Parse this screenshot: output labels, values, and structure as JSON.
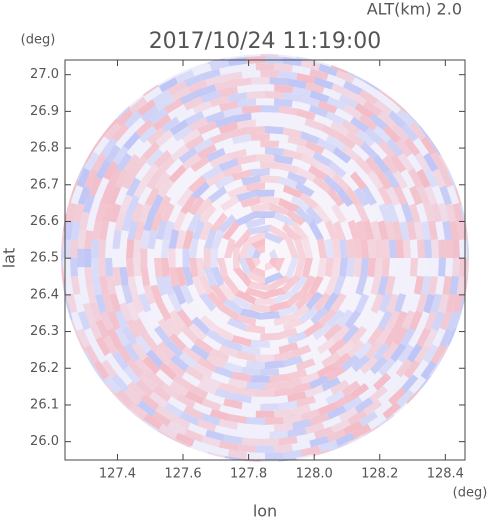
{
  "chart_data": {
    "type": "ppi",
    "title": "2017/10/24 11:19:00",
    "subtitle": "ALT(km) 2.0",
    "xlabel": "lon",
    "ylabel": "lat",
    "xunit": "(deg)",
    "yunit": "(deg)",
    "xlim": [
      127.24,
      128.46
    ],
    "xticks": [
      127.4,
      127.6,
      127.8,
      {
        "value": 128.0,
        "label": "128.0"
      },
      128.2,
      128.4
    ],
    "ylim": [
      25.95,
      27.04
    ],
    "yticks": [
      {
        "value": 26.0,
        "label": "26.0"
      },
      26.1,
      26.2,
      26.3,
      26.4,
      26.5,
      26.6,
      26.7,
      26.8,
      26.9,
      {
        "value": 27.0,
        "label": "27.0"
      }
    ]
  }
}
